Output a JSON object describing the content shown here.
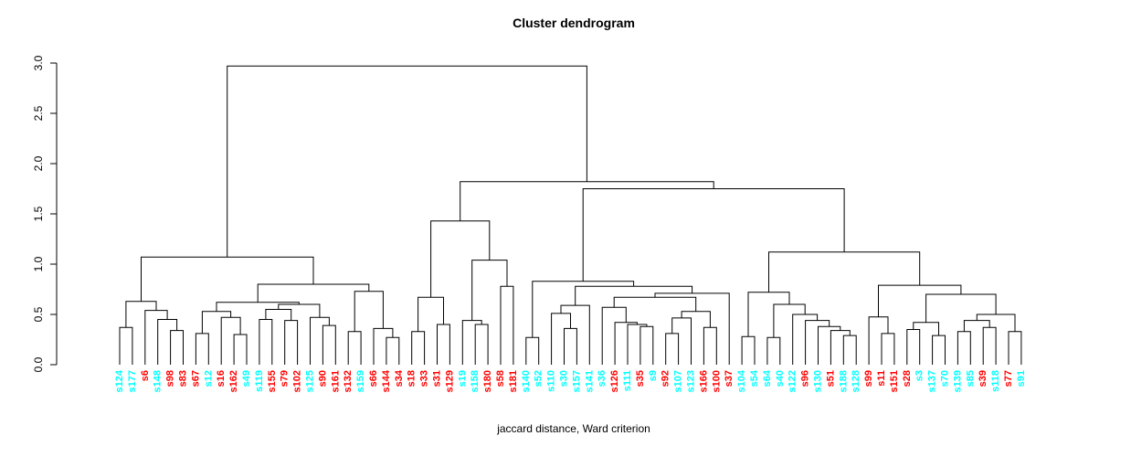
{
  "title": "Cluster dendrogram",
  "subtitle": "jaccard distance, Ward criterion",
  "colors": {
    "red": "#FF0000",
    "cyan": "#00FFFF",
    "line": "#000000",
    "background": "#FFFFFF"
  },
  "chart_data": {
    "type": "dendrogram",
    "title": "Cluster dendrogram",
    "xlabel": "jaccard distance, Ward criterion",
    "ylabel": "",
    "ylim": [
      0,
      3
    ],
    "grid": false,
    "legend": "none",
    "y_axis_ticks": [
      "0.0",
      "0.5",
      "1.0",
      "1.5",
      "2.0",
      "2.5",
      "3.0"
    ],
    "y_axis_tick_values": [
      0,
      0.5,
      1.0,
      1.5,
      2.0,
      2.5,
      3.0
    ],
    "leaves": [
      {
        "label": "s124",
        "color": "cyan"
      },
      {
        "label": "s177",
        "color": "cyan"
      },
      {
        "label": "s6",
        "color": "red"
      },
      {
        "label": "s148",
        "color": "cyan"
      },
      {
        "label": "s98",
        "color": "red"
      },
      {
        "label": "s83",
        "color": "red"
      },
      {
        "label": "s67",
        "color": "red"
      },
      {
        "label": "s12",
        "color": "cyan"
      },
      {
        "label": "s16",
        "color": "red"
      },
      {
        "label": "s162",
        "color": "red"
      },
      {
        "label": "s49",
        "color": "cyan"
      },
      {
        "label": "s119",
        "color": "cyan"
      },
      {
        "label": "s155",
        "color": "red"
      },
      {
        "label": "s79",
        "color": "red"
      },
      {
        "label": "s102",
        "color": "red"
      },
      {
        "label": "s125",
        "color": "cyan"
      },
      {
        "label": "s90",
        "color": "red"
      },
      {
        "label": "s161",
        "color": "red"
      },
      {
        "label": "s132",
        "color": "red"
      },
      {
        "label": "s159",
        "color": "cyan"
      },
      {
        "label": "s66",
        "color": "red"
      },
      {
        "label": "s144",
        "color": "red"
      },
      {
        "label": "s34",
        "color": "red"
      },
      {
        "label": "s18",
        "color": "red"
      },
      {
        "label": "s33",
        "color": "red"
      },
      {
        "label": "s31",
        "color": "red"
      },
      {
        "label": "s129",
        "color": "red"
      },
      {
        "label": "s19",
        "color": "cyan"
      },
      {
        "label": "s158",
        "color": "cyan"
      },
      {
        "label": "s180",
        "color": "red"
      },
      {
        "label": "s58",
        "color": "red"
      },
      {
        "label": "s181",
        "color": "red"
      },
      {
        "label": "s140",
        "color": "cyan"
      },
      {
        "label": "s52",
        "color": "cyan"
      },
      {
        "label": "s110",
        "color": "cyan"
      },
      {
        "label": "s30",
        "color": "cyan"
      },
      {
        "label": "s157",
        "color": "cyan"
      },
      {
        "label": "s141",
        "color": "cyan"
      },
      {
        "label": "s36",
        "color": "cyan"
      },
      {
        "label": "s126",
        "color": "red"
      },
      {
        "label": "s111",
        "color": "cyan"
      },
      {
        "label": "s35",
        "color": "red"
      },
      {
        "label": "s9",
        "color": "cyan"
      },
      {
        "label": "s92",
        "color": "red"
      },
      {
        "label": "s107",
        "color": "cyan"
      },
      {
        "label": "s123",
        "color": "cyan"
      },
      {
        "label": "s166",
        "color": "red"
      },
      {
        "label": "s100",
        "color": "red"
      },
      {
        "label": "s37",
        "color": "red"
      },
      {
        "label": "s104",
        "color": "cyan"
      },
      {
        "label": "s54",
        "color": "cyan"
      },
      {
        "label": "s64",
        "color": "cyan"
      },
      {
        "label": "s40",
        "color": "cyan"
      },
      {
        "label": "s122",
        "color": "cyan"
      },
      {
        "label": "s96",
        "color": "red"
      },
      {
        "label": "s130",
        "color": "cyan"
      },
      {
        "label": "s51",
        "color": "red"
      },
      {
        "label": "s188",
        "color": "cyan"
      },
      {
        "label": "s128",
        "color": "cyan"
      },
      {
        "label": "s99",
        "color": "red"
      },
      {
        "label": "s11",
        "color": "red"
      },
      {
        "label": "s151",
        "color": "red"
      },
      {
        "label": "s28",
        "color": "red"
      },
      {
        "label": "s3",
        "color": "cyan"
      },
      {
        "label": "s137",
        "color": "cyan"
      },
      {
        "label": "s70",
        "color": "cyan"
      },
      {
        "label": "s139",
        "color": "cyan"
      },
      {
        "label": "s85",
        "color": "cyan"
      },
      {
        "label": "s39",
        "color": "red"
      },
      {
        "label": "s118",
        "color": "cyan"
      },
      {
        "label": "s77",
        "color": "red"
      },
      {
        "label": "s91",
        "color": "cyan"
      }
    ],
    "tree": {
      "h": 2.97,
      "c": [
        {
          "h": 1.07,
          "c": [
            {
              "h": 0.63,
              "c": [
                {
                  "h": 0.37,
                  "c": [
                    "s124",
                    "s177"
                  ]
                },
                {
                  "h": 0.54,
                  "c": [
                    "s6",
                    {
                      "h": 0.45,
                      "c": [
                        "s148",
                        {
                          "h": 0.34,
                          "c": [
                            "s98",
                            "s83"
                          ]
                        }
                      ]
                    }
                  ]
                }
              ]
            },
            {
              "h": 0.8,
              "c": [
                {
                  "h": 0.62,
                  "c": [
                    {
                      "h": 0.53,
                      "c": [
                        {
                          "h": 0.31,
                          "c": [
                            "s67",
                            "s12"
                          ]
                        },
                        {
                          "h": 0.47,
                          "c": [
                            "s16",
                            {
                              "h": 0.3,
                              "c": [
                                "s162",
                                "s49"
                              ]
                            }
                          ]
                        }
                      ]
                    },
                    {
                      "h": 0.6,
                      "c": [
                        {
                          "h": 0.55,
                          "c": [
                            {
                              "h": 0.45,
                              "c": [
                                "s119",
                                "s155"
                              ]
                            },
                            {
                              "h": 0.44,
                              "c": [
                                "s79",
                                "s102"
                              ]
                            }
                          ]
                        },
                        {
                          "h": 0.47,
                          "c": [
                            "s125",
                            {
                              "h": 0.39,
                              "c": [
                                "s90",
                                "s161"
                              ]
                            }
                          ]
                        }
                      ]
                    }
                  ]
                },
                {
                  "h": 0.73,
                  "c": [
                    {
                      "h": 0.33,
                      "c": [
                        "s132",
                        "s159"
                      ]
                    },
                    {
                      "h": 0.36,
                      "c": [
                        "s66",
                        {
                          "h": 0.27,
                          "c": [
                            "s144",
                            "s34"
                          ]
                        }
                      ]
                    }
                  ]
                }
              ]
            }
          ]
        },
        {
          "h": 1.82,
          "c": [
            {
              "h": 1.43,
              "c": [
                {
                  "h": 0.67,
                  "c": [
                    {
                      "h": 0.33,
                      "c": [
                        "s18",
                        "s33"
                      ]
                    },
                    {
                      "h": 0.4,
                      "c": [
                        "s31",
                        "s129"
                      ]
                    }
                  ]
                },
                {
                  "h": 1.04,
                  "c": [
                    {
                      "h": 0.44,
                      "c": [
                        "s19",
                        {
                          "h": 0.4,
                          "c": [
                            "s158",
                            "s180"
                          ]
                        }
                      ]
                    },
                    {
                      "h": 0.78,
                      "c": [
                        "s58",
                        "s181"
                      ]
                    }
                  ]
                }
              ]
            },
            {
              "h": 1.75,
              "c": [
                {
                  "h": 0.83,
                  "c": [
                    {
                      "h": 0.27,
                      "c": [
                        "s140",
                        "s52"
                      ]
                    },
                    {
                      "h": 0.78,
                      "c": [
                        {
                          "h": 0.59,
                          "c": [
                            {
                              "h": 0.51,
                              "c": [
                                "s110",
                                {
                                  "h": 0.36,
                                  "c": [
                                    "s30",
                                    "s157"
                                  ]
                                }
                              ]
                            },
                            "s141"
                          ]
                        },
                        {
                          "h": 0.71,
                          "c": [
                            {
                              "h": 0.67,
                              "c": [
                                {
                                  "h": 0.57,
                                  "c": [
                                    "s36",
                                    {
                                      "h": 0.42,
                                      "c": [
                                        "s126",
                                        {
                                          "h": 0.4,
                                          "c": [
                                            "s111",
                                            {
                                              "h": 0.38,
                                              "c": [
                                                "s35",
                                                "s9"
                                              ]
                                            }
                                          ]
                                        }
                                      ]
                                    }
                                  ]
                                },
                                {
                                  "h": 0.53,
                                  "c": [
                                    {
                                      "h": 0.465,
                                      "c": [
                                        {
                                          "h": 0.31,
                                          "c": [
                                            "s92",
                                            "s107"
                                          ]
                                        },
                                        "s123"
                                      ]
                                    },
                                    {
                                      "h": 0.37,
                                      "c": [
                                        "s166",
                                        "s100"
                                      ]
                                    }
                                  ]
                                }
                              ]
                            },
                            "s37"
                          ]
                        }
                      ]
                    }
                  ]
                },
                {
                  "h": 1.12,
                  "c": [
                    {
                      "h": 0.72,
                      "c": [
                        {
                          "h": 0.28,
                          "c": [
                            "s104",
                            "s54"
                          ]
                        },
                        {
                          "h": 0.6,
                          "c": [
                            {
                              "h": 0.27,
                              "c": [
                                "s64",
                                "s40"
                              ]
                            },
                            {
                              "h": 0.5,
                              "c": [
                                "s122",
                                {
                                  "h": 0.44,
                                  "c": [
                                    "s96",
                                    {
                                      "h": 0.38,
                                      "c": [
                                        "s130",
                                        {
                                          "h": 0.34,
                                          "c": [
                                            "s51",
                                            {
                                              "h": 0.29,
                                              "c": [
                                                "s188",
                                                "s128"
                                              ]
                                            }
                                          ]
                                        }
                                      ]
                                    }
                                  ]
                                }
                              ]
                            }
                          ]
                        }
                      ]
                    },
                    {
                      "h": 0.79,
                      "c": [
                        {
                          "h": 0.475,
                          "c": [
                            "s99",
                            {
                              "h": 0.31,
                              "c": [
                                "s11",
                                "s151"
                              ]
                            }
                          ]
                        },
                        {
                          "h": 0.7,
                          "c": [
                            {
                              "h": 0.42,
                              "c": [
                                {
                                  "h": 0.35,
                                  "c": [
                                    "s28",
                                    "s3"
                                  ]
                                },
                                {
                                  "h": 0.29,
                                  "c": [
                                    "s137",
                                    "s70"
                                  ]
                                }
                              ]
                            },
                            {
                              "h": 0.5,
                              "c": [
                                {
                                  "h": 0.44,
                                  "c": [
                                    {
                                      "h": 0.33,
                                      "c": [
                                        "s139",
                                        "s85"
                                      ]
                                    },
                                    {
                                      "h": 0.37,
                                      "c": [
                                        "s39",
                                        "s118"
                                      ]
                                    }
                                  ]
                                },
                                {
                                  "h": 0.33,
                                  "c": [
                                    "s77",
                                    "s91"
                                  ]
                                }
                              ]
                            }
                          ]
                        }
                      ]
                    }
                  ]
                }
              ]
            }
          ]
        }
      ]
    }
  }
}
